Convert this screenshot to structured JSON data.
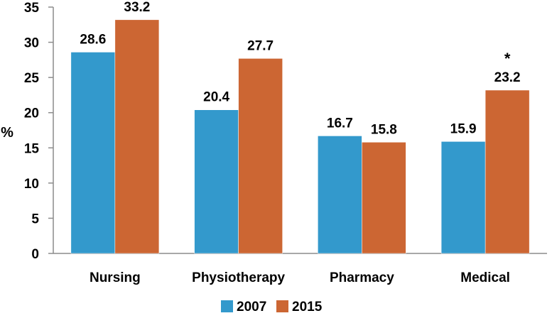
{
  "chart_data": {
    "type": "bar",
    "title": "",
    "xlabel": "",
    "ylabel": "%",
    "ylim": [
      0,
      35
    ],
    "yticks": [
      0,
      5,
      10,
      15,
      20,
      25,
      30,
      35
    ],
    "grid": false,
    "legend_position": "bottom",
    "categories": [
      "Nursing",
      "Physiotherapy",
      "Pharmacy",
      "Medical"
    ],
    "series": [
      {
        "name": "2007",
        "color": "#3399CC",
        "values": [
          28.6,
          20.4,
          16.7,
          15.9
        ]
      },
      {
        "name": "2015",
        "color": "#CC6633",
        "values": [
          33.2,
          27.7,
          15.8,
          23.2
        ]
      }
    ],
    "annotations": [
      {
        "category": "Medical",
        "text": "*"
      }
    ]
  }
}
